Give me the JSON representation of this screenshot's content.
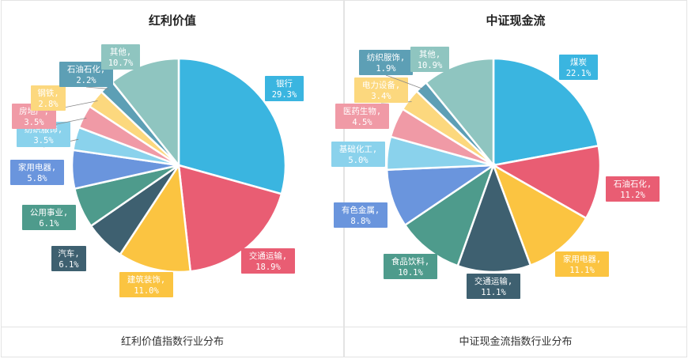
{
  "chart_data": [
    {
      "type": "pie",
      "title": "红利价值",
      "caption": "红利价值指数行业分布",
      "slices": [
        {
          "name": "银行",
          "value": 29.3,
          "label": "29.3%",
          "color": "#3ab5e0"
        },
        {
          "name": "交通运输,",
          "value": 18.9,
          "label": "18.9%",
          "color": "#e95d73"
        },
        {
          "name": "建筑装饰,",
          "value": 11.0,
          "label": "11.0%",
          "color": "#fbc441"
        },
        {
          "name": "汽车,",
          "value": 6.1,
          "label": "6.1%",
          "color": "#3e6070"
        },
        {
          "name": "公用事业,",
          "value": 6.1,
          "label": "6.1%",
          "color": "#4e9b8c"
        },
        {
          "name": "家用电器,",
          "value": 5.8,
          "label": "5.8%",
          "color": "#6a95dd"
        },
        {
          "name": "纺织服饰,",
          "value": 3.5,
          "label": "3.5%",
          "color": "#8ad2ec"
        },
        {
          "name": "房地产,",
          "value": 3.5,
          "label": "3.5%",
          "color": "#f09aa6"
        },
        {
          "name": "钢铁,",
          "value": 2.8,
          "label": "2.8%",
          "color": "#fcd87e"
        },
        {
          "name": "石油石化,",
          "value": 2.2,
          "label": "2.2%",
          "color": "#5d9fb5"
        },
        {
          "name": "其他,",
          "value": 10.7,
          "label": "10.7%",
          "color": "#8fc5c0"
        }
      ]
    },
    {
      "type": "pie",
      "title": "中证现金流",
      "caption": "中证现金流指数行业分布",
      "slices": [
        {
          "name": "煤炭",
          "value": 22.1,
          "label": "22.1%",
          "color": "#3ab5e0"
        },
        {
          "name": "石油石化,",
          "value": 11.2,
          "label": "11.2%",
          "color": "#e95d73"
        },
        {
          "name": "家用电器,",
          "value": 11.1,
          "label": "11.1%",
          "color": "#fbc441"
        },
        {
          "name": "交通运输,",
          "value": 11.1,
          "label": "11.1%",
          "color": "#3e6070"
        },
        {
          "name": "食品饮料,",
          "value": 10.1,
          "label": "10.1%",
          "color": "#4e9b8c"
        },
        {
          "name": "有色金属,",
          "value": 8.8,
          "label": "8.8%",
          "color": "#6a95dd"
        },
        {
          "name": "基础化工,",
          "value": 5.0,
          "label": "5.0%",
          "color": "#8ad2ec"
        },
        {
          "name": "医药生物,",
          "value": 4.5,
          "label": "4.5%",
          "color": "#f09aa6"
        },
        {
          "name": "电力设备,",
          "value": 3.4,
          "label": "3.4%",
          "color": "#fcd87e"
        },
        {
          "name": "纺织服饰,",
          "value": 1.9,
          "label": "1.9%",
          "color": "#5d9fb5"
        },
        {
          "name": "其他,",
          "value": 10.9,
          "label": "10.9%",
          "color": "#8fc5c0"
        }
      ]
    }
  ]
}
